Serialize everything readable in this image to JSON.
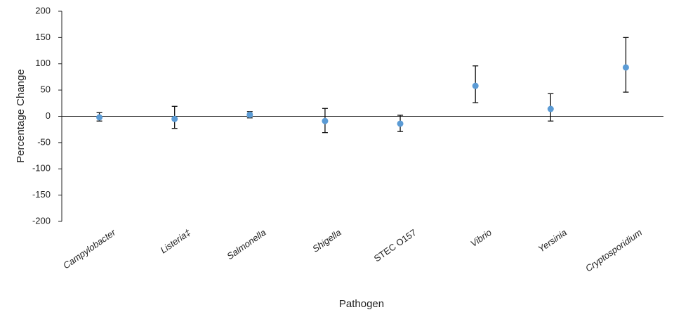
{
  "chart_data": {
    "type": "errorbar",
    "x_label": "Pathogen",
    "y_label": "Percentage Change",
    "categories": [
      "Campylobacter",
      "Listeria‡",
      "Salmonella",
      "Shigella",
      "STEC O157",
      "Vibrio",
      "Yersinia",
      "Cryptosporidium"
    ],
    "category_italic": [
      true,
      true,
      true,
      true,
      false,
      true,
      true,
      true
    ],
    "series": [
      {
        "name": "Percentage Change",
        "color": "#5b9bd5",
        "values": [
          -2,
          -5,
          3,
          -9,
          -14,
          58,
          14,
          93
        ],
        "lower": [
          -9,
          -23,
          -3,
          -31,
          -29,
          26,
          -9,
          46
        ],
        "upper": [
          7,
          19,
          9,
          15,
          2,
          96,
          43,
          150
        ]
      }
    ],
    "ylim": [
      -200,
      200
    ],
    "yticks": [
      -200,
      -150,
      -100,
      -50,
      0,
      50,
      100,
      150,
      200
    ]
  }
}
